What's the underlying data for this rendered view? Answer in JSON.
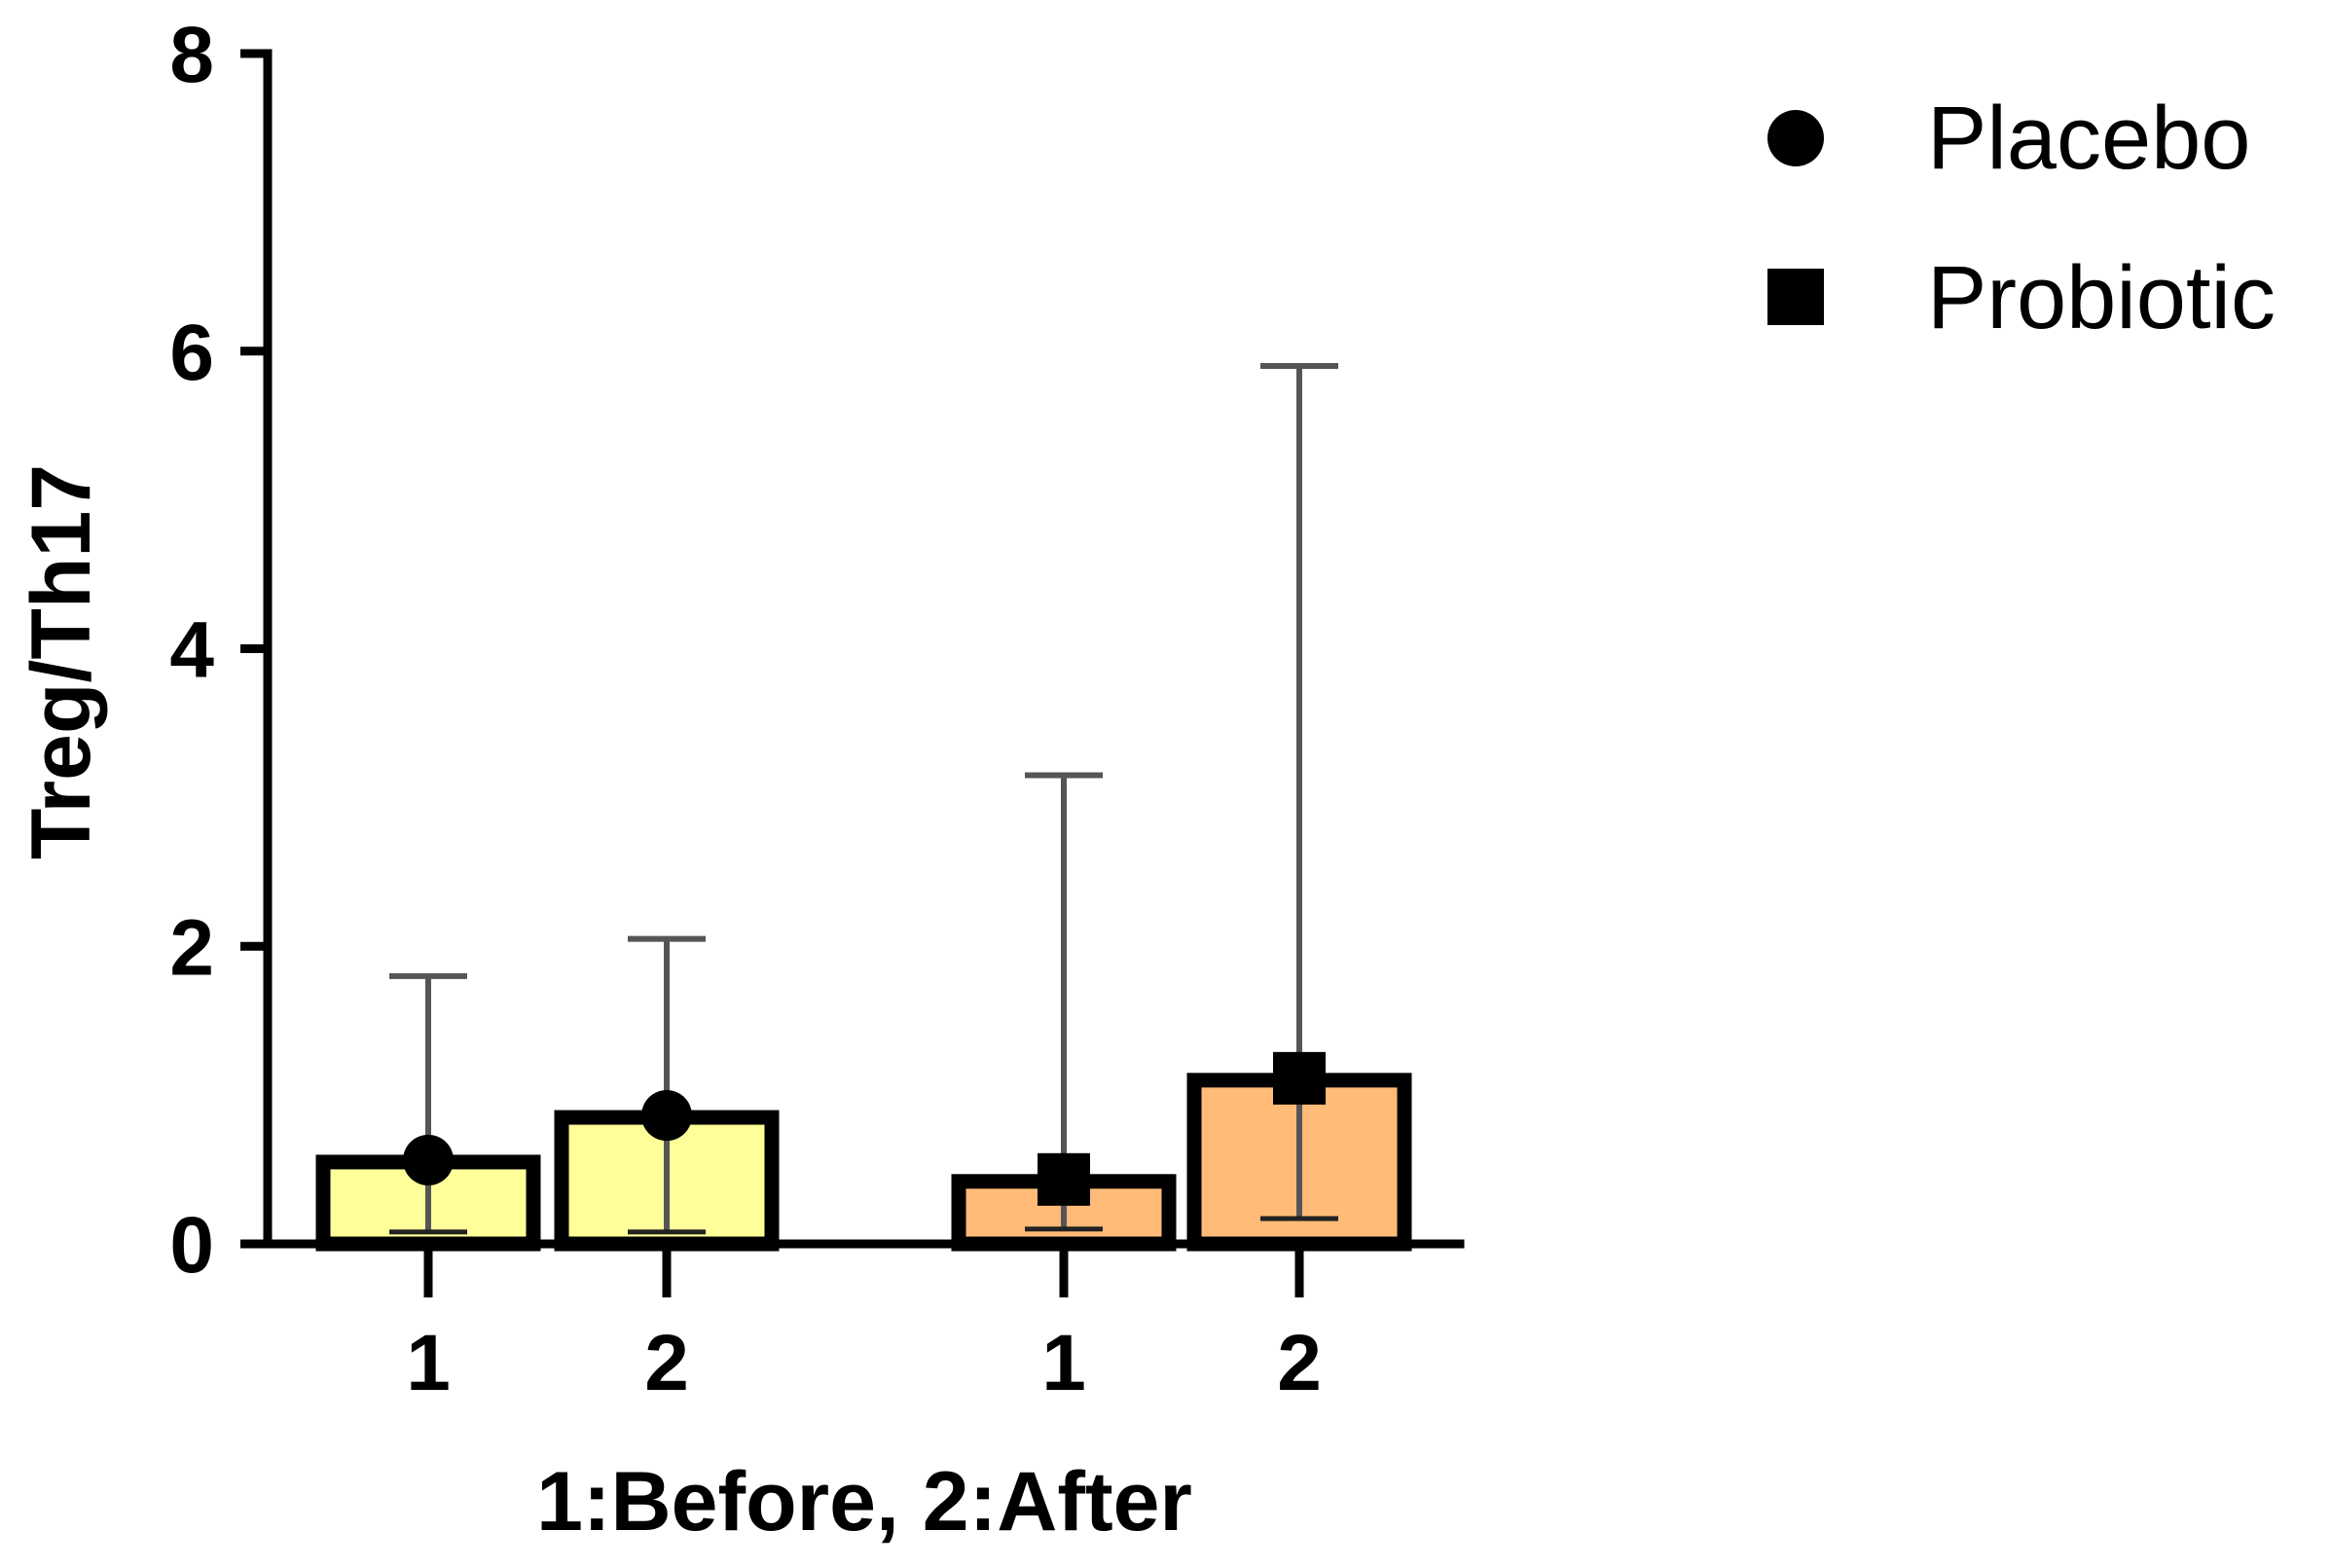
{
  "chart_data": {
    "type": "bar",
    "ylabel": "Treg/Th17",
    "xlabel": "1:Before, 2:After",
    "ylim": [
      0,
      8
    ],
    "yticks": [
      0,
      2,
      4,
      6,
      8
    ],
    "groups": [
      {
        "name": "Placebo",
        "marker": "circle",
        "color": "#ffff99",
        "categories": [
          "1",
          "2"
        ],
        "values": [
          0.55,
          0.85
        ],
        "error_low": [
          0.08,
          0.08
        ],
        "error_high": [
          1.8,
          2.05
        ]
      },
      {
        "name": "Probiotic",
        "marker": "square",
        "color": "#ffbb77",
        "categories": [
          "1",
          "2"
        ],
        "values": [
          0.42,
          1.1
        ],
        "error_low": [
          0.1,
          0.17
        ],
        "error_high": [
          3.15,
          5.9
        ]
      }
    ],
    "legend": [
      "Placebo",
      "Probiotic"
    ],
    "legend_position": "top-right",
    "grid": false
  }
}
